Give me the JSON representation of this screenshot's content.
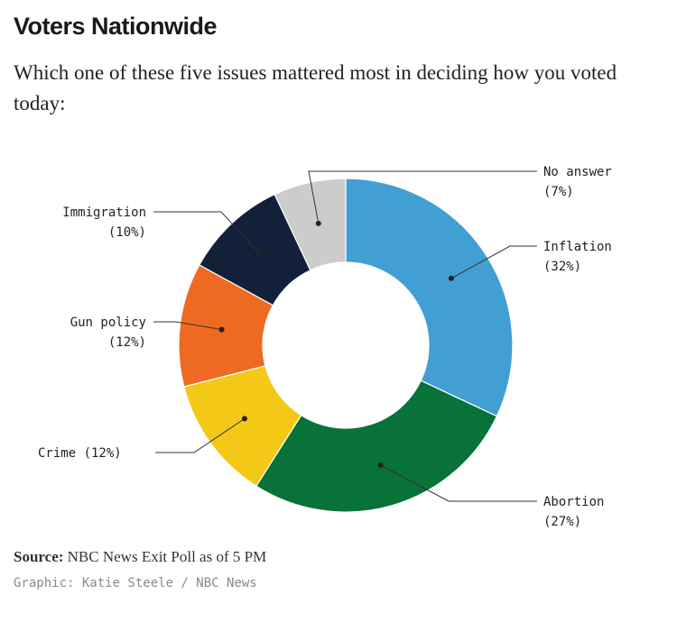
{
  "header": {
    "title": "Voters Nationwide",
    "subtitle": "Which one of these five issues mattered most in deciding how you voted today:"
  },
  "chart_data": {
    "type": "pie",
    "style": "donut",
    "slices": [
      {
        "label": "Inflation",
        "value": 32,
        "value_label": "(32%)",
        "color": "#419fd3"
      },
      {
        "label": "Abortion",
        "value": 27,
        "value_label": "(27%)",
        "color": "#087238"
      },
      {
        "label": "Crime",
        "value": 12,
        "value_label": "(12%)",
        "color": "#f4c817"
      },
      {
        "label": "Gun policy",
        "value": 12,
        "value_label": "(12%)",
        "color": "#ee6a22"
      },
      {
        "label": "Immigration",
        "value": 10,
        "value_label": "(10%)",
        "color": "#132039"
      },
      {
        "label": "No answer",
        "value": 7,
        "value_label": "(7%)",
        "color": "#cccccc"
      }
    ]
  },
  "footer": {
    "source_label": "Source:",
    "source_text": "NBC News Exit Poll as of 5 PM",
    "credit": "Graphic: Katie Steele / NBC News"
  }
}
